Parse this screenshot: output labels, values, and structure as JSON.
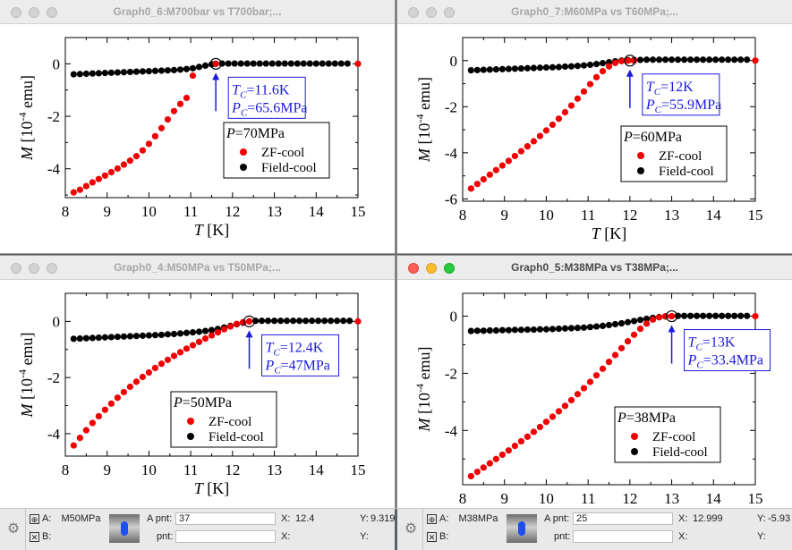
{
  "windows": [
    {
      "title": "Graph0_6:M700bar vs T700bar;...",
      "active": false,
      "legend_title": "P=70MPa",
      "tc_label": "=11.6K",
      "pc_label": "=65.6MPa",
      "marker_T": 11.6
    },
    {
      "title": "Graph0_7:M60MPa vs T60MPa;...",
      "active": false,
      "legend_title": "P=60MPa",
      "tc_label": "=12K",
      "pc_label": "=55.9MPa",
      "marker_T": 12.0
    },
    {
      "title": "Graph0_4:M50MPa vs T50MPa;...",
      "active": false,
      "legend_title": "P=50MPa",
      "tc_label": "=12.4K",
      "pc_label": "=47MPa",
      "marker_T": 12.4
    },
    {
      "title": "Graph0_5:M38MPa vs T38MPa;...",
      "active": true,
      "legend_title": "P=38MPa",
      "tc_label": "=13K",
      "pc_label": "=33.4MPa",
      "marker_T": 13.0
    }
  ],
  "colors": {
    "zf": "#f00000",
    "fc": "#000000",
    "annot": "#1a1adc",
    "bg": "#5d6266"
  },
  "chart_data": [
    {
      "type": "scatter",
      "title": "Graph0_6:M700bar vs T700bar;...",
      "xlabel": "T [K]",
      "ylabel": "M [10^-4 emu]",
      "xlim": [
        8,
        15
      ],
      "ylim": [
        -5.1,
        1.0
      ],
      "xticks": [
        8,
        9,
        10,
        11,
        12,
        13,
        14,
        15
      ],
      "yticks": [
        0,
        -2,
        -4
      ],
      "series": [
        {
          "name": "ZF-cool",
          "x": [
            8.2,
            8.35,
            8.5,
            8.65,
            8.8,
            8.95,
            9.1,
            9.25,
            9.4,
            9.55,
            9.7,
            9.85,
            10.0,
            10.15,
            10.3,
            10.45,
            10.6,
            10.75,
            10.9,
            11.05,
            11.6,
            15.0
          ],
          "y": [
            -4.9,
            -4.8,
            -4.66,
            -4.52,
            -4.39,
            -4.26,
            -4.13,
            -3.99,
            -3.84,
            -3.69,
            -3.52,
            -3.3,
            -3.05,
            -2.76,
            -2.45,
            -2.12,
            -1.8,
            -1.53,
            -1.3,
            -0.45,
            0.0,
            0.0
          ]
        },
        {
          "name": "Field-cool",
          "x": [
            8.2,
            8.35,
            8.5,
            8.65,
            8.8,
            8.95,
            9.1,
            9.25,
            9.4,
            9.55,
            9.7,
            9.85,
            10.0,
            10.15,
            10.3,
            10.45,
            10.6,
            10.75,
            10.9,
            11.05,
            11.2,
            11.35,
            11.5,
            11.6,
            11.75,
            11.9,
            12.05,
            12.2,
            12.35,
            12.5,
            12.65,
            12.8,
            12.95,
            13.1,
            13.25,
            13.4,
            13.55,
            13.7,
            13.85,
            14.0,
            14.15,
            14.3,
            14.45,
            14.6,
            14.75
          ],
          "y": [
            -0.4,
            -0.39,
            -0.38,
            -0.37,
            -0.36,
            -0.35,
            -0.34,
            -0.33,
            -0.32,
            -0.31,
            -0.3,
            -0.29,
            -0.28,
            -0.27,
            -0.26,
            -0.25,
            -0.24,
            -0.22,
            -0.2,
            -0.17,
            -0.12,
            -0.07,
            -0.02,
            0.0,
            0.01,
            0.01,
            0.01,
            0.01,
            0.01,
            0.01,
            0.01,
            0.01,
            0.01,
            0.01,
            0.01,
            0.01,
            0.01,
            0.01,
            0.01,
            0.01,
            0.01,
            0.01,
            0.01,
            0.01,
            0.01
          ]
        }
      ],
      "annotation": {
        "tc": "11.6 K",
        "pc": "65.6 MPa"
      },
      "legend": [
        "P=70MPa",
        "ZF-cool",
        "Field-cool"
      ]
    },
    {
      "type": "scatter",
      "title": "Graph0_7:M60MPa vs T60MPa;...",
      "xlabel": "T [K]",
      "ylabel": "M [10^-4 emu]",
      "xlim": [
        8,
        15
      ],
      "ylim": [
        -6.1,
        1.0
      ],
      "xticks": [
        8,
        9,
        10,
        11,
        12,
        13,
        14,
        15
      ],
      "yticks": [
        0,
        -2,
        -4,
        -6
      ],
      "series": [
        {
          "name": "ZF-cool",
          "x": [
            8.2,
            8.35,
            8.5,
            8.65,
            8.8,
            8.95,
            9.1,
            9.25,
            9.4,
            9.55,
            9.7,
            9.85,
            10.0,
            10.15,
            10.3,
            10.45,
            10.6,
            10.75,
            10.9,
            11.05,
            11.2,
            11.35,
            11.5,
            11.65,
            11.8,
            11.95,
            12.1,
            15.0
          ],
          "y": [
            -5.55,
            -5.35,
            -5.15,
            -4.95,
            -4.75,
            -4.55,
            -4.35,
            -4.14,
            -3.93,
            -3.72,
            -3.5,
            -3.27,
            -3.03,
            -2.78,
            -2.52,
            -2.24,
            -1.95,
            -1.65,
            -1.34,
            -1.02,
            -0.72,
            -0.46,
            -0.25,
            -0.1,
            -0.02,
            0.0,
            0.0,
            0.0
          ]
        },
        {
          "name": "Field-cool",
          "x": [
            8.2,
            8.35,
            8.5,
            8.65,
            8.8,
            8.95,
            9.1,
            9.25,
            9.4,
            9.55,
            9.7,
            9.85,
            10.0,
            10.15,
            10.3,
            10.45,
            10.6,
            10.75,
            10.9,
            11.05,
            11.2,
            11.35,
            11.5,
            11.65,
            11.8,
            11.95,
            12.1,
            12.25,
            12.4,
            12.55,
            12.7,
            12.85,
            13.0,
            13.15,
            13.3,
            13.45,
            13.6,
            13.75,
            13.9,
            14.05,
            14.2,
            14.35,
            14.5,
            14.65,
            14.8
          ],
          "y": [
            -0.42,
            -0.41,
            -0.4,
            -0.39,
            -0.38,
            -0.37,
            -0.36,
            -0.35,
            -0.34,
            -0.33,
            -0.32,
            -0.31,
            -0.3,
            -0.29,
            -0.28,
            -0.26,
            -0.25,
            -0.23,
            -0.21,
            -0.18,
            -0.15,
            -0.11,
            -0.07,
            -0.03,
            0.0,
            0.02,
            0.03,
            0.03,
            0.04,
            0.04,
            0.04,
            0.04,
            0.04,
            0.04,
            0.04,
            0.04,
            0.04,
            0.04,
            0.04,
            0.04,
            0.04,
            0.04,
            0.04,
            0.04,
            0.04
          ]
        }
      ],
      "annotation": {
        "tc": "12 K",
        "pc": "55.9 MPa"
      },
      "legend": [
        "P=60MPa",
        "ZF-cool",
        "Field-cool"
      ]
    },
    {
      "type": "scatter",
      "title": "Graph0_4:M50MPa vs T50MPa;...",
      "xlabel": "T [K]",
      "ylabel": "M [10^-4 emu]",
      "xlim": [
        8,
        15
      ],
      "ylim": [
        -4.8,
        1.0
      ],
      "xticks": [
        8,
        9,
        10,
        11,
        12,
        13,
        14,
        15
      ],
      "yticks": [
        0,
        -2,
        -4
      ],
      "series": [
        {
          "name": "ZF-cool",
          "x": [
            8.2,
            8.35,
            8.5,
            8.65,
            8.8,
            8.95,
            9.1,
            9.25,
            9.4,
            9.55,
            9.7,
            9.85,
            10.0,
            10.15,
            10.3,
            10.45,
            10.6,
            10.75,
            10.9,
            11.05,
            11.2,
            11.35,
            11.5,
            11.65,
            11.8,
            11.95,
            12.1,
            12.25,
            12.4,
            15.0
          ],
          "y": [
            -4.42,
            -4.15,
            -3.88,
            -3.62,
            -3.38,
            -3.15,
            -2.93,
            -2.72,
            -2.52,
            -2.33,
            -2.15,
            -1.98,
            -1.82,
            -1.66,
            -1.51,
            -1.37,
            -1.23,
            -1.1,
            -0.97,
            -0.85,
            -0.73,
            -0.61,
            -0.5,
            -0.39,
            -0.28,
            -0.18,
            -0.09,
            -0.03,
            0.0,
            0.0
          ]
        },
        {
          "name": "Field-cool",
          "x": [
            8.2,
            8.35,
            8.5,
            8.65,
            8.8,
            8.95,
            9.1,
            9.25,
            9.4,
            9.55,
            9.7,
            9.85,
            10.0,
            10.15,
            10.3,
            10.45,
            10.6,
            10.75,
            10.9,
            11.05,
            11.2,
            11.35,
            11.5,
            11.65,
            11.8,
            11.95,
            12.1,
            12.25,
            12.4,
            12.55,
            12.7,
            12.85,
            13.0,
            13.15,
            13.3,
            13.45,
            13.6,
            13.75,
            13.9,
            14.05,
            14.2,
            14.35,
            14.5,
            14.65,
            14.8
          ],
          "y": [
            -0.62,
            -0.61,
            -0.6,
            -0.59,
            -0.58,
            -0.57,
            -0.56,
            -0.55,
            -0.54,
            -0.53,
            -0.52,
            -0.51,
            -0.5,
            -0.49,
            -0.48,
            -0.46,
            -0.45,
            -0.43,
            -0.41,
            -0.39,
            -0.37,
            -0.34,
            -0.31,
            -0.27,
            -0.22,
            -0.16,
            -0.1,
            -0.05,
            0.0,
            0.02,
            0.02,
            0.02,
            0.02,
            0.02,
            0.02,
            0.02,
            0.02,
            0.02,
            0.02,
            0.02,
            0.02,
            0.02,
            0.02,
            0.02,
            0.02
          ]
        }
      ],
      "annotation": {
        "tc": "12.4 K",
        "pc": "47 MPa"
      },
      "legend": [
        "P=50MPa",
        "ZF-cool",
        "Field-cool"
      ]
    },
    {
      "type": "scatter",
      "title": "Graph0_5:M38MPa vs T38MPa;...",
      "xlabel": "T [K]",
      "ylabel": "M [10^-4 emu]",
      "xlim": [
        8,
        15
      ],
      "ylim": [
        -5.9,
        0.8
      ],
      "xticks": [
        8,
        9,
        10,
        11,
        12,
        13,
        14,
        15
      ],
      "yticks": [
        0,
        -2,
        -4
      ],
      "series": [
        {
          "name": "ZF-cool",
          "x": [
            8.2,
            8.35,
            8.5,
            8.65,
            8.8,
            8.95,
            9.1,
            9.25,
            9.4,
            9.55,
            9.7,
            9.85,
            10.0,
            10.15,
            10.3,
            10.45,
            10.6,
            10.75,
            10.9,
            11.05,
            11.2,
            11.35,
            11.5,
            11.65,
            11.8,
            11.95,
            12.1,
            12.25,
            12.4,
            12.55,
            12.7,
            12.85,
            13.0,
            15.0
          ],
          "y": [
            -5.6,
            -5.45,
            -5.3,
            -5.15,
            -5.0,
            -4.85,
            -4.7,
            -4.54,
            -4.38,
            -4.22,
            -4.05,
            -3.88,
            -3.7,
            -3.52,
            -3.33,
            -3.14,
            -2.94,
            -2.73,
            -2.52,
            -2.3,
            -2.07,
            -1.84,
            -1.6,
            -1.36,
            -1.12,
            -0.88,
            -0.65,
            -0.44,
            -0.26,
            -0.12,
            -0.04,
            0.0,
            0.0,
            0.0
          ]
        },
        {
          "name": "Field-cool",
          "x": [
            8.2,
            8.35,
            8.5,
            8.65,
            8.8,
            8.95,
            9.1,
            9.25,
            9.4,
            9.55,
            9.7,
            9.85,
            10.0,
            10.15,
            10.3,
            10.45,
            10.6,
            10.75,
            10.9,
            11.05,
            11.2,
            11.35,
            11.5,
            11.65,
            11.8,
            11.95,
            12.1,
            12.25,
            12.4,
            12.55,
            12.7,
            12.85,
            13.0,
            13.15,
            13.3,
            13.45,
            13.6,
            13.75,
            13.9,
            14.05,
            14.2,
            14.35,
            14.5,
            14.65,
            14.8
          ],
          "y": [
            -0.52,
            -0.51,
            -0.51,
            -0.5,
            -0.5,
            -0.49,
            -0.49,
            -0.48,
            -0.48,
            -0.47,
            -0.47,
            -0.46,
            -0.46,
            -0.45,
            -0.44,
            -0.43,
            -0.42,
            -0.41,
            -0.4,
            -0.38,
            -0.36,
            -0.34,
            -0.31,
            -0.28,
            -0.25,
            -0.21,
            -0.17,
            -0.13,
            -0.09,
            -0.06,
            -0.03,
            -0.01,
            0.0,
            0.01,
            0.01,
            0.01,
            0.01,
            0.01,
            0.01,
            0.01,
            0.01,
            0.01,
            0.01,
            0.01,
            0.01
          ]
        }
      ],
      "annotation": {
        "tc": "13 K",
        "pc": "33.4 MPa"
      },
      "legend": [
        "P=38MPa",
        "ZF-cool",
        "Field-cool"
      ]
    }
  ],
  "statusbars": [
    {
      "a_label": "A:",
      "b_label": "B:",
      "trace_name": "M50MPa",
      "apnt_label": "A pnt:",
      "apnt_value": "37",
      "pnt_label": "pnt:",
      "x_label": "X:",
      "x_value": "12.4",
      "y_label": "Y:",
      "y_value": "9.319",
      "x2_label": "X:",
      "y2_label": "Y:"
    },
    {
      "a_label": "A:",
      "b_label": "B:",
      "trace_name": "M38MPa",
      "apnt_label": "A pnt:",
      "apnt_value": "25",
      "pnt_label": "pnt:",
      "x_label": "X:",
      "x_value": "12.999",
      "y_label": "Y:",
      "y_value": "-5.93",
      "x2_label": "X:",
      "y2_label": "Y:"
    }
  ],
  "axis_text": {
    "x_var": "T",
    "x_unit": " [K]",
    "y_var": "M",
    "y_unit_pre": " [10",
    "y_exp": "-4",
    "y_unit_post": " emu]",
    "tc_sym": "T",
    "tc_sub": "C",
    "pc_sym": "P",
    "pc_sub": "C"
  }
}
